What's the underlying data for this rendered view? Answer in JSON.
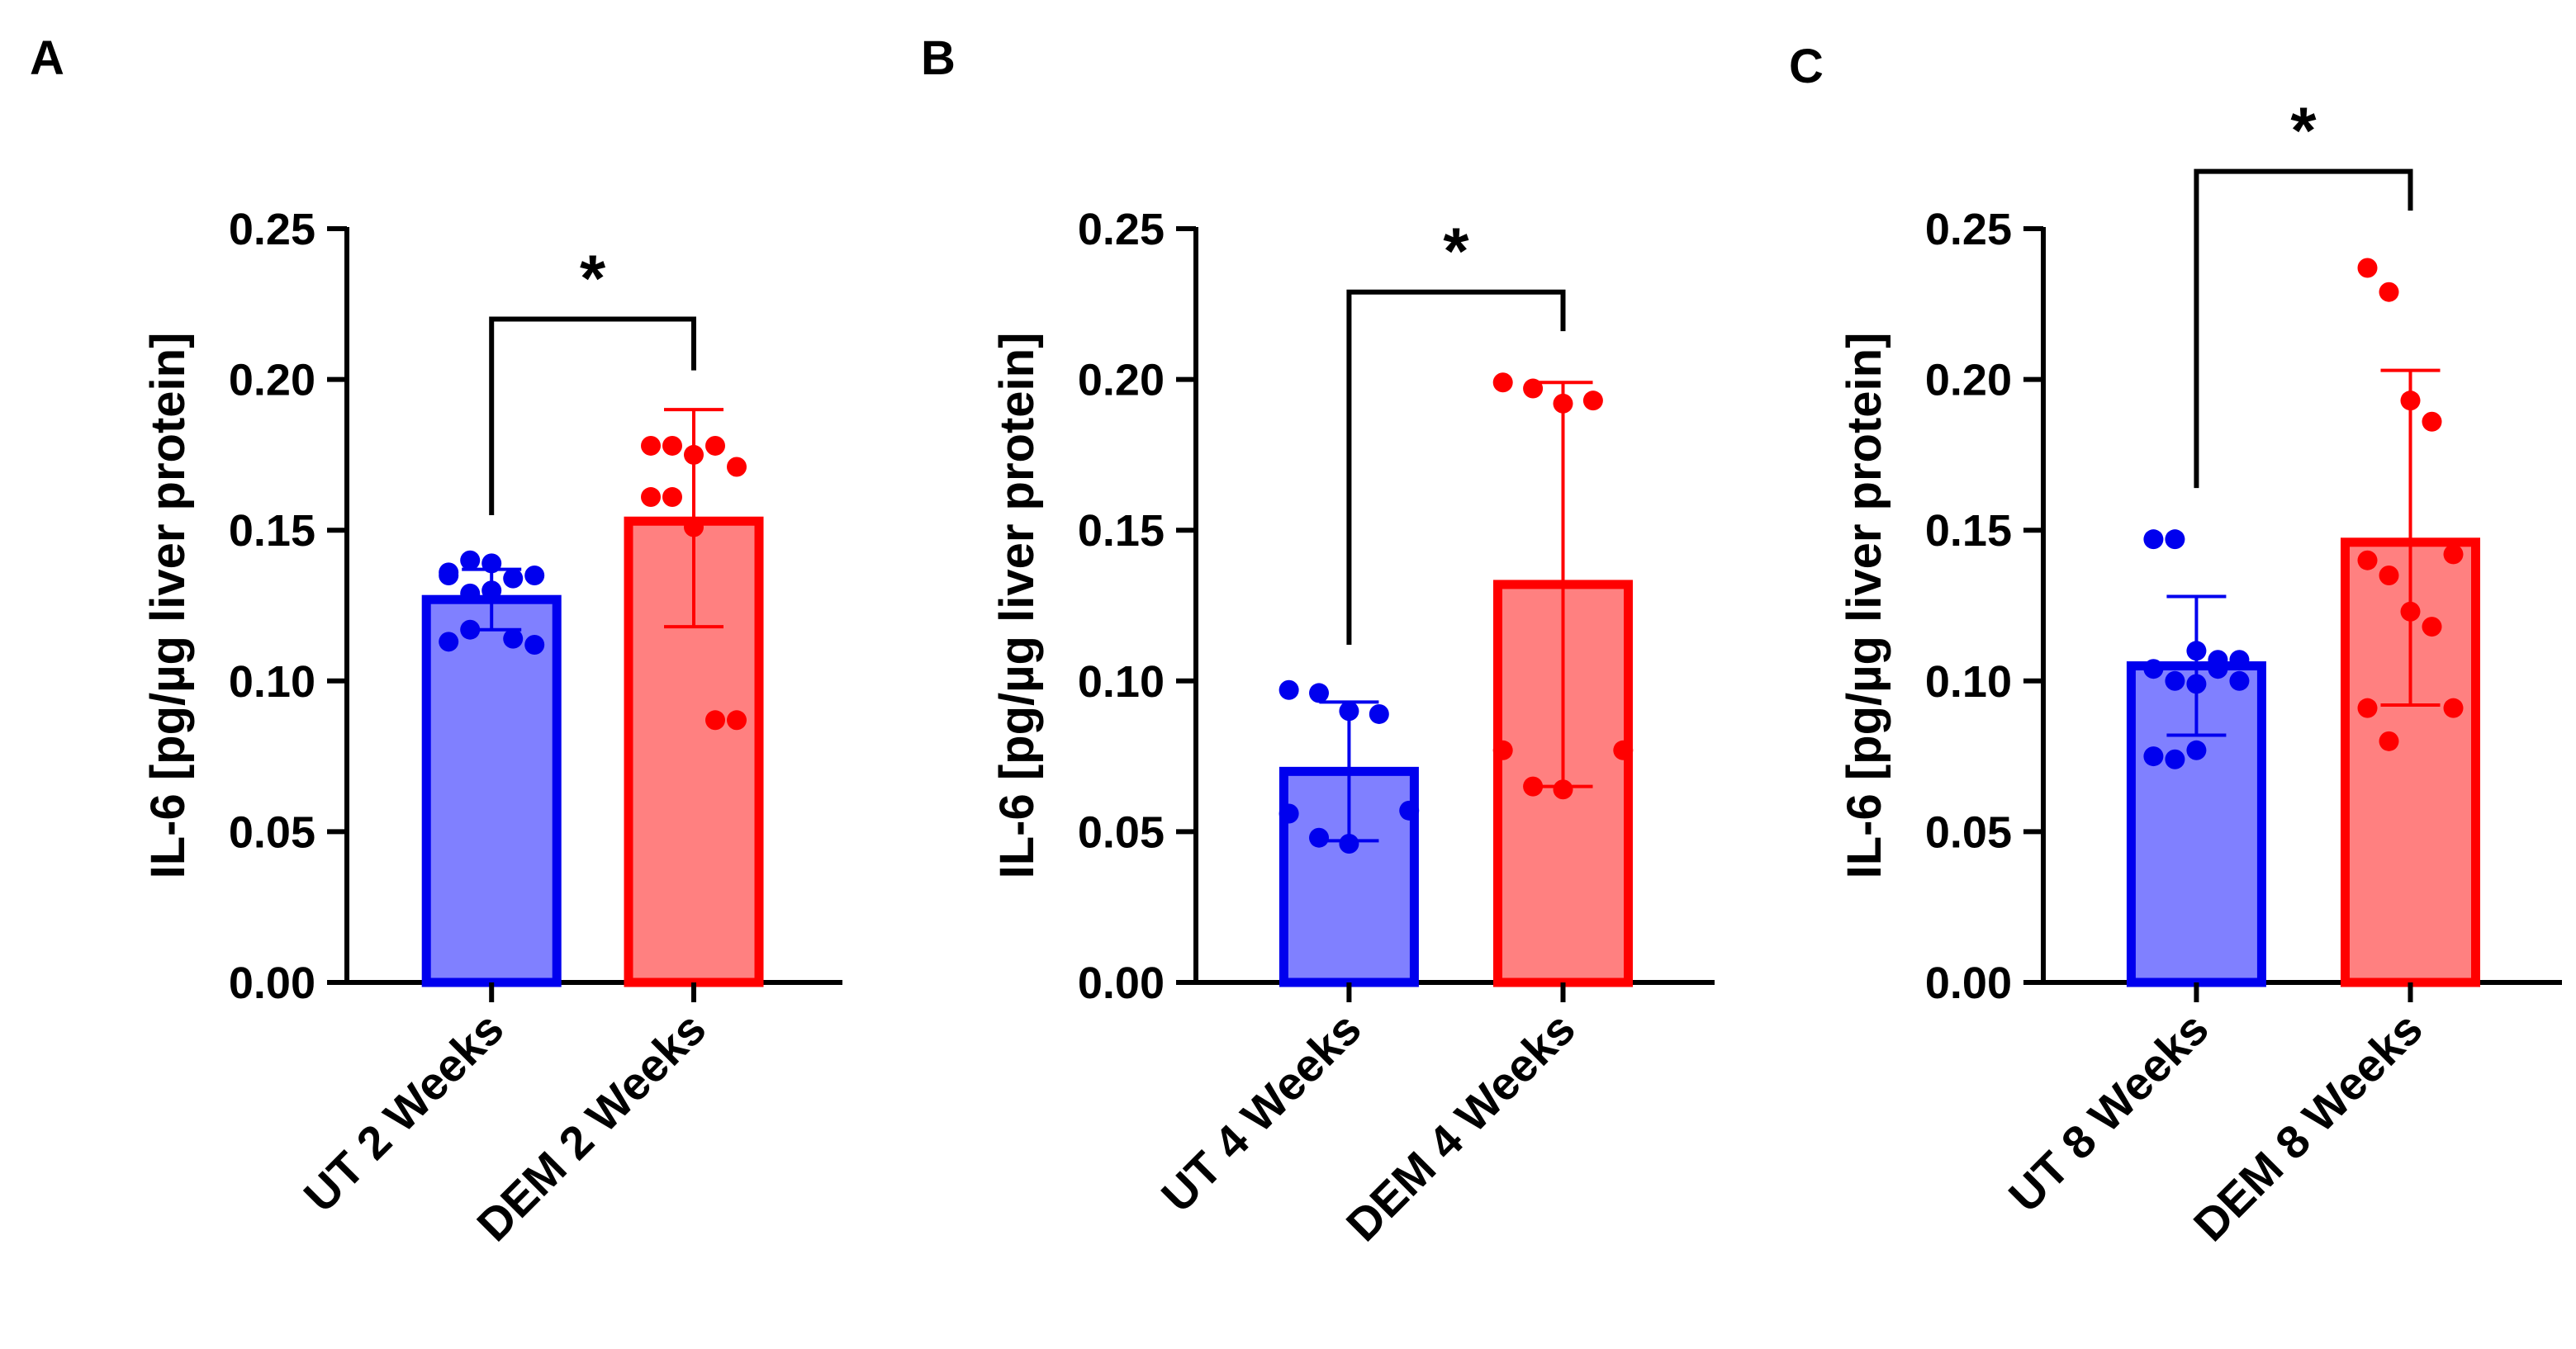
{
  "figure": {
    "y_tick_format_decimals": 2
  },
  "chart_data": [
    {
      "type": "bar",
      "panel_label": "A",
      "ylabel": "IL-6 [pg/µg liver protein]",
      "ylim": [
        0,
        0.25
      ],
      "yticks": [
        0.0,
        0.05,
        0.1,
        0.15,
        0.2,
        0.25
      ],
      "categories": [
        "UT 2 Weeks",
        "DEM 2 Weeks"
      ],
      "series": [
        {
          "name": "UT 2 Weeks",
          "mean": 0.127,
          "sd_low": 0.117,
          "sd_high": 0.137,
          "color": "#0000ee",
          "fill": "#8080ff",
          "points": [
            0.136,
            0.14,
            0.139,
            0.134,
            0.135,
            0.135,
            0.129,
            0.13,
            0.114,
            0.112,
            0.113,
            0.117
          ]
        },
        {
          "name": "DEM 2 Weeks",
          "mean": 0.153,
          "sd_low": 0.118,
          "sd_high": 0.19,
          "color": "#ff0000",
          "fill": "#ff8080",
          "points": [
            0.178,
            0.178,
            0.175,
            0.178,
            0.171,
            0.161,
            0.161,
            0.151,
            0.087,
            0.087
          ]
        }
      ],
      "significance": {
        "label": "*",
        "from": 0,
        "to": 1,
        "bar_y": 0.22,
        "left_drop": 0.155,
        "right_drop": 0.203
      }
    },
    {
      "type": "bar",
      "panel_label": "B",
      "ylabel": "IL-6 [pg/µg liver protein]",
      "ylim": [
        0,
        0.25
      ],
      "yticks": [
        0.0,
        0.05,
        0.1,
        0.15,
        0.2,
        0.25
      ],
      "categories": [
        "UT 4 Weeks",
        "DEM 4 Weeks"
      ],
      "series": [
        {
          "name": "UT 4 Weeks",
          "mean": 0.07,
          "sd_low": 0.047,
          "sd_high": 0.093,
          "color": "#0000ee",
          "fill": "#8080ff",
          "points": [
            0.097,
            0.096,
            0.09,
            0.089,
            0.057,
            0.056,
            0.048,
            0.046
          ]
        },
        {
          "name": "DEM 4 Weeks",
          "mean": 0.132,
          "sd_low": 0.065,
          "sd_high": 0.199,
          "color": "#ff0000",
          "fill": "#ff8080",
          "points": [
            0.199,
            0.197,
            0.192,
            0.193,
            0.077,
            0.077,
            0.065,
            0.064
          ]
        }
      ],
      "significance": {
        "label": "*",
        "from": 0,
        "to": 1,
        "bar_y": 0.229,
        "left_drop": 0.112,
        "right_drop": 0.216
      }
    },
    {
      "type": "bar",
      "panel_label": "C",
      "ylabel": "IL-6 [pg/µg liver protein]",
      "ylim": [
        0,
        0.25
      ],
      "yticks": [
        0.0,
        0.05,
        0.1,
        0.15,
        0.2,
        0.25
      ],
      "categories": [
        "UT 8 Weeks",
        "DEM 8 Weeks"
      ],
      "series": [
        {
          "name": "UT 8 Weeks",
          "mean": 0.105,
          "sd_low": 0.082,
          "sd_high": 0.128,
          "color": "#0000ee",
          "fill": "#8080ff",
          "points": [
            0.147,
            0.147,
            0.11,
            0.107,
            0.107,
            0.104,
            0.1,
            0.099,
            0.104,
            0.1,
            0.075,
            0.074,
            0.077
          ]
        },
        {
          "name": "DEM 8 Weeks",
          "mean": 0.146,
          "sd_low": 0.092,
          "sd_high": 0.203,
          "color": "#ff0000",
          "fill": "#ff8080",
          "points": [
            0.237,
            0.229,
            0.193,
            0.186,
            0.142,
            0.14,
            0.135,
            0.123,
            0.118,
            0.091,
            0.091,
            0.08
          ]
        }
      ],
      "significance": {
        "label": "*",
        "from": 0,
        "to": 1,
        "bar_y": 0.269,
        "left_drop": 0.164,
        "right_drop": 0.256
      }
    }
  ]
}
